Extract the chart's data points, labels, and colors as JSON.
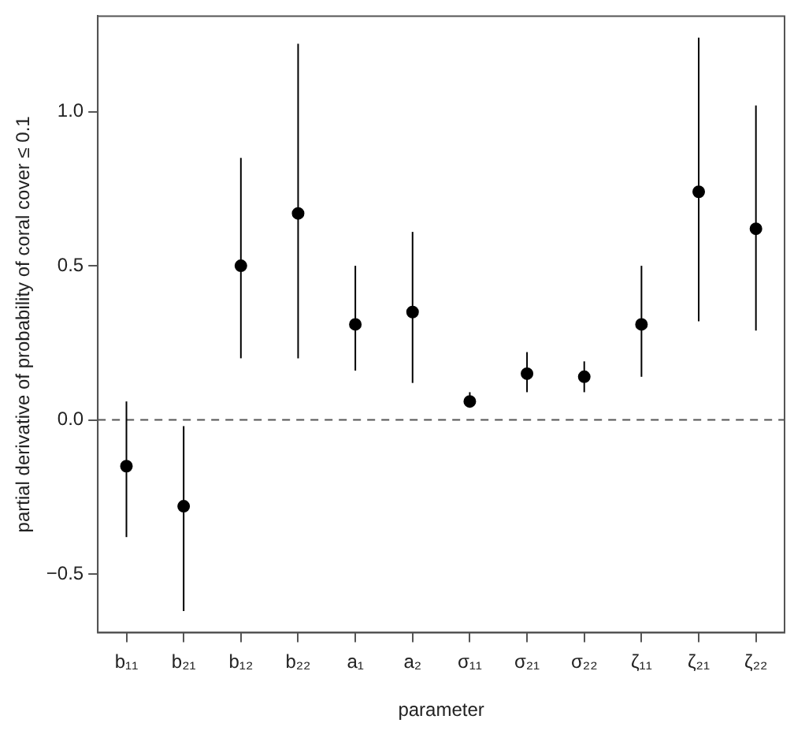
{
  "chart_data": {
    "type": "scatter",
    "xlabel": "parameter",
    "ylabel": "partial derivative of probability of coral cover ≤ 0.1",
    "categories": [
      "b₁₁",
      "b₂₁",
      "b₁₂",
      "b₂₂",
      "a₁",
      "a₂",
      "σ₁₁",
      "σ₂₁",
      "σ₂₂",
      "ζ₁₁",
      "ζ₂₁",
      "ζ₂₂"
    ],
    "values": [
      -0.15,
      -0.28,
      0.5,
      0.67,
      0.31,
      0.35,
      0.06,
      0.15,
      0.14,
      0.31,
      0.74,
      0.62
    ],
    "errors": [
      [
        -0.38,
        0.06
      ],
      [
        -0.62,
        -0.02
      ],
      [
        0.2,
        0.85
      ],
      [
        0.2,
        1.22
      ],
      [
        0.16,
        0.5
      ],
      [
        0.12,
        0.61
      ],
      [
        0.04,
        0.09
      ],
      [
        0.09,
        0.22
      ],
      [
        0.09,
        0.19
      ],
      [
        0.14,
        0.5
      ],
      [
        0.32,
        1.24
      ],
      [
        0.29,
        1.02
      ]
    ],
    "color": "#000000",
    "marker": "circle",
    "ylim": [
      -0.69,
      1.31
    ],
    "yticks": [
      {
        "value": -0.5,
        "label": "−0.5"
      },
      {
        "value": 0,
        "label": "0.0"
      },
      {
        "value": 0.5,
        "label": "0.5"
      },
      {
        "value": 1,
        "label": "1.0"
      }
    ],
    "ref_lines": [
      {
        "axis": "y",
        "value": 0,
        "color": "#555555",
        "line_style": "dashed"
      }
    ],
    "grid": false,
    "legend": false
  }
}
